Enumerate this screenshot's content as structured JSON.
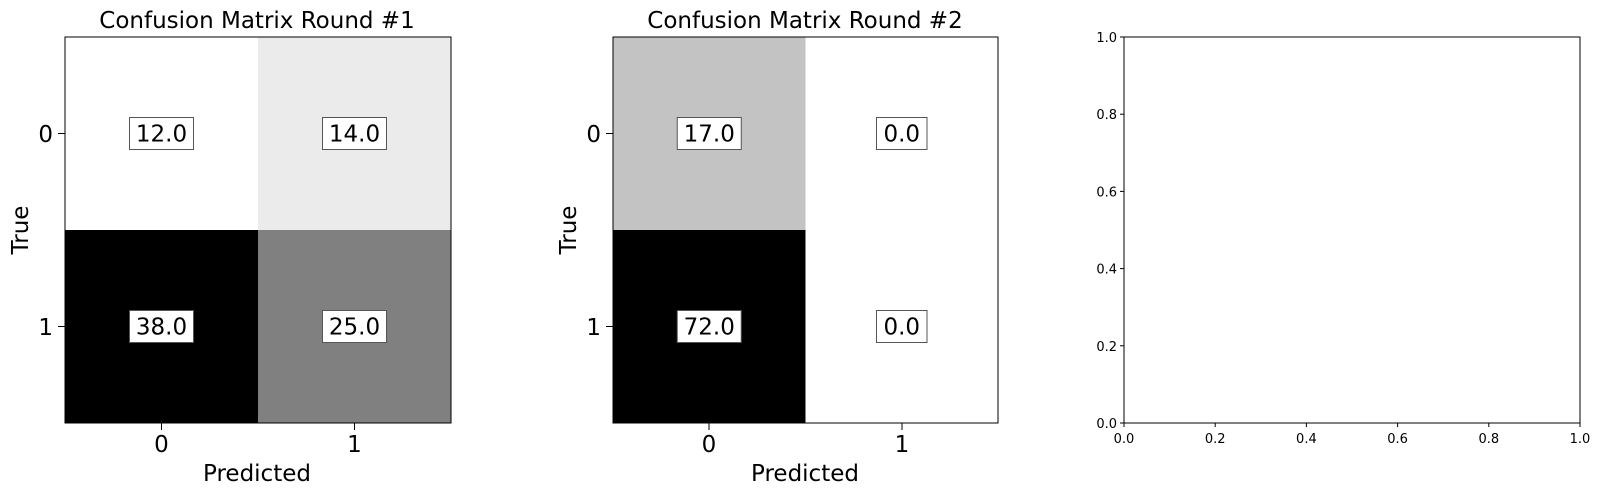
{
  "chart_data": [
    {
      "type": "heatmap",
      "title": "Confusion Matrix Round #1",
      "xlabel": "Predicted",
      "ylabel": "True",
      "x_tick_labels": [
        "0",
        "1"
      ],
      "y_tick_labels": [
        "0",
        "1"
      ],
      "values": [
        [
          12.0,
          14.0
        ],
        [
          38.0,
          25.0
        ]
      ],
      "value_labels": [
        [
          "12.0",
          "14.0"
        ],
        [
          "38.0",
          "25.0"
        ]
      ],
      "colormap": "gray_r"
    },
    {
      "type": "heatmap",
      "title": "Confusion Matrix Round #2",
      "xlabel": "Predicted",
      "ylabel": "True",
      "x_tick_labels": [
        "0",
        "1"
      ],
      "y_tick_labels": [
        "0",
        "1"
      ],
      "values": [
        [
          17.0,
          0.0
        ],
        [
          72.0,
          0.0
        ]
      ],
      "value_labels": [
        [
          "17.0",
          "0.0"
        ],
        [
          "72.0",
          "0.0"
        ]
      ],
      "colormap": "gray_r"
    },
    {
      "type": "scatter",
      "title": "",
      "xlabel": "",
      "ylabel": "",
      "xlim": [
        0.0,
        1.0
      ],
      "ylim": [
        0.0,
        1.0
      ],
      "x_tick_labels": [
        "0.0",
        "0.2",
        "0.4",
        "0.6",
        "0.8",
        "1.0"
      ],
      "y_tick_labels": [
        "0.0",
        "0.2",
        "0.4",
        "0.6",
        "0.8",
        "1.0"
      ],
      "series": []
    }
  ]
}
